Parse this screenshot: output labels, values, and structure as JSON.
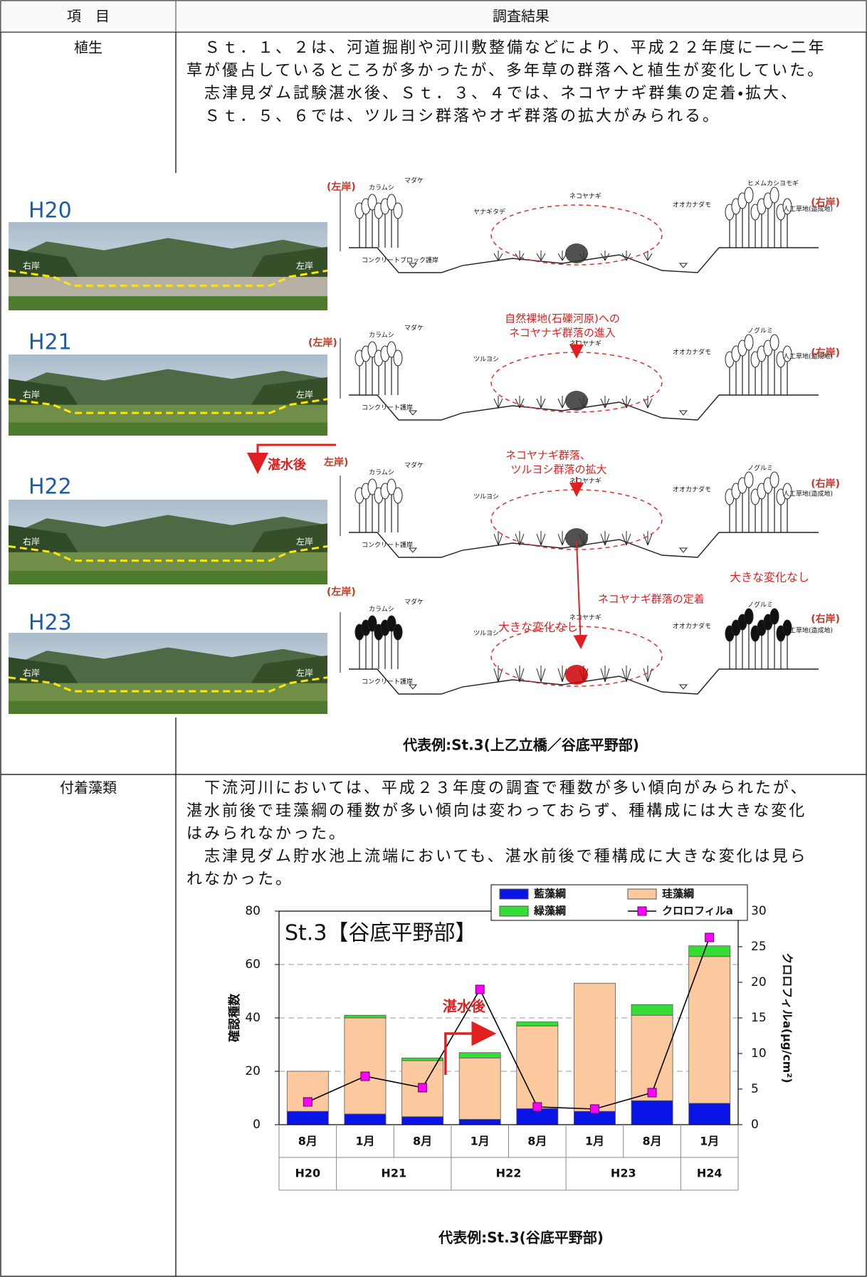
{
  "table": {
    "header": [
      "項　目",
      "調査結果"
    ],
    "rows": [
      {
        "item": "植生",
        "paragraph_lines": [
          "　Ｓｔ．１、２は、河道掘削や河川敷整備などにより、平成２２年度に一～二年",
          "草が優占しているところが多かったが、多年草の群落へと植生が変化していた。",
          "　志津見ダム試験湛水後、Ｓｔ．３、４では、ネコヤナギ群集の定着・拡大、",
          "　Ｓｔ．５、６では、ツルヨシ群落やオギ群落の拡大がみられる。"
        ],
        "figure": {
          "panels": [
            {
              "year": "H20",
              "photo_left": "右岸",
              "photo_right": "左岸",
              "bank_left": "(左岸)",
              "bank_right": "(右岸)",
              "labels": [
                "カラムシ",
                "マダケ",
                "ヤナギタデ",
                "ネコヤナギ",
                "オオカナダモ",
                "ヒメムカシヨモギ",
                "人工草地(造成地)",
                "コンクリートブロック護岸"
              ]
            },
            {
              "year": "H21",
              "photo_left": "右岸",
              "photo_right": "左岸",
              "bank_left": "(左岸)",
              "bank_right": "(右岸)",
              "labels": [
                "カラムシ",
                "マダケ",
                "ツルヨシ",
                "ネコヤナギ",
                "オオカナダモ",
                "ノグルミ",
                "人工草地(造成地)",
                "コンクリート護岸"
              ]
            },
            {
              "year": "H22",
              "photo_left": "右岸",
              "photo_right": "左岸",
              "bank_left": "左岸)",
              "bank_right": "(右岸)",
              "labels": [
                "カラムシ",
                "マダケ",
                "ツルヨシ",
                "ネコヤナギ",
                "オオカナダモ",
                "ノグルミ",
                "人工草地(造成地)",
                "コンクリート護岸"
              ]
            },
            {
              "year": "H23",
              "photo_left": "右岸",
              "photo_right": "左岸",
              "bank_left": "(左岸)",
              "bank_right": "(右岸)",
              "labels": [
                "カラムシ",
                "マダケ",
                "ツルヨシ",
                "ネコヤナギ",
                "オオカナダモ",
                "ノグルミ",
                "人工草地(造成地)",
                "コンクリート護岸"
              ]
            }
          ],
          "annotations": {
            "entry": [
              "自然裸地(石礫河原)への",
              "ネコヤナギ群落の進入"
            ],
            "expansion": [
              "ネコヤナギ群落、",
              "ツルヨシ群落の拡大"
            ],
            "establishment": "ネコヤナギ群落の定着",
            "no_change_1": "大きな変化なし",
            "no_change_2": "大きな変化なし",
            "impoundment": "湛水後"
          }
        },
        "caption": "代表例:St.3(上乙立橋／谷底平野部)"
      },
      {
        "item": "付着藻類",
        "paragraph_lines": [
          "　下流河川においては、平成２３年度の調査で種数が多い傾向がみられたが、",
          "湛水前後で珪藻綱の種数が多い傾向は変わっておらず、種構成には大きな変化",
          "はみられなかった。",
          "　志津見ダム貯水池上流端においても、湛水前後で種構成に大きな変化は見ら",
          "れなかった。"
        ],
        "caption": "代表例:St.3(谷底平野部)"
      }
    ]
  },
  "chart_data": {
    "type": "bar",
    "stacked": true,
    "title": "St.3【谷底平野部】",
    "ylabel": "確認種数",
    "y2label": "クロロフィルa(μg/cm²)",
    "annotation": "湛水後",
    "categories": [
      "8月",
      "1月",
      "8月",
      "1月",
      "8月",
      "1月",
      "8月",
      "1月"
    ],
    "group": [
      "H20",
      "H21",
      "H21",
      "H22",
      "H22",
      "H23",
      "H23",
      "H24"
    ],
    "series": [
      {
        "name": "藍藻綱",
        "color": "#0a14e6",
        "values": [
          5,
          4,
          3,
          2,
          6,
          5,
          9,
          8
        ]
      },
      {
        "name": "珪藻綱",
        "color": "#fbc99d",
        "values": [
          15,
          36,
          21,
          23,
          31,
          48,
          32,
          55
        ]
      },
      {
        "name": "緑藻綱",
        "color": "#33dd33",
        "values": [
          0,
          1,
          1,
          2,
          1.5,
          0,
          4,
          4
        ]
      },
      {
        "name": "クロロフィルa",
        "type": "line",
        "axis": "y2",
        "color": "#000000",
        "marker_color": "#ff00ff",
        "values": [
          3.2,
          6.8,
          5.2,
          19,
          2.5,
          2.2,
          4.5,
          26.3
        ]
      }
    ],
    "ylim": [
      0,
      80
    ],
    "yticks": [
      0,
      20,
      40,
      60,
      80
    ],
    "y2lim": [
      0,
      30
    ],
    "y2ticks": [
      0,
      5,
      10,
      15,
      20,
      25,
      30
    ],
    "grid": true,
    "legend": "top-right"
  }
}
